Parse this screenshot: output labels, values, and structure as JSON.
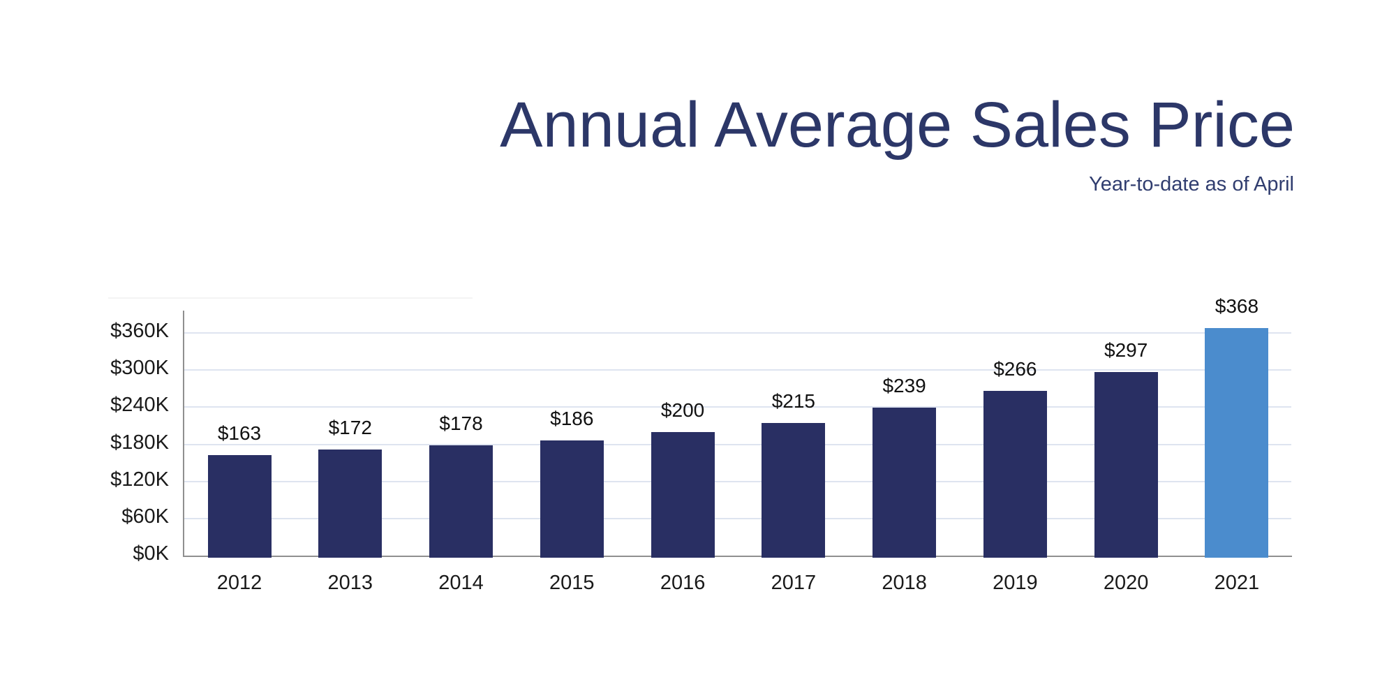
{
  "header": {
    "title": "Annual Average Sales Price",
    "subtitle": "Year-to-date as of April"
  },
  "colors": {
    "title_text": "#2C3768",
    "subtitle_text": "#303D6F",
    "bar_default": "#292F63",
    "bar_highlight": "#4B8CCD",
    "gridline": "#DEE4F0",
    "axis_line": "#8F8F8F",
    "tick_text": "#1A1A1A",
    "value_label_text": "#111111",
    "background": "#FFFFFF"
  },
  "chart_data": {
    "type": "bar",
    "title": "Annual Average Sales Price",
    "subtitle": "Year-to-date as of April",
    "units": "USD thousands",
    "categories": [
      "2012",
      "2013",
      "2014",
      "2015",
      "2016",
      "2017",
      "2018",
      "2019",
      "2020",
      "2021"
    ],
    "values": [
      163,
      172,
      178,
      186,
      200,
      215,
      239,
      266,
      297,
      368
    ],
    "value_labels": [
      "$163",
      "$172",
      "$178",
      "$186",
      "$200",
      "$215",
      "$239",
      "$266",
      "$297",
      "$368"
    ],
    "y_ticks": [
      {
        "value": 0,
        "label": "$0K"
      },
      {
        "value": 60,
        "label": "$60K"
      },
      {
        "value": 120,
        "label": "$120K"
      },
      {
        "value": 180,
        "label": "$180K"
      },
      {
        "value": 240,
        "label": "$240K"
      },
      {
        "value": 300,
        "label": "$300K"
      },
      {
        "value": 360,
        "label": "$360K"
      }
    ],
    "ylim": [
      0,
      397
    ],
    "grid": true,
    "legend": false,
    "highlight_index": 9,
    "highlight_category": "2021"
  }
}
